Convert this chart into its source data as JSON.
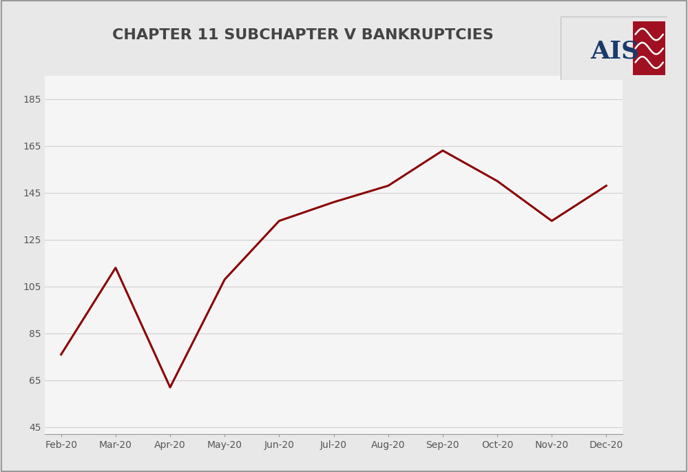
{
  "title": "CHAPTER 11 SUBCHAPTER V BANKRUPTCIES",
  "x_labels": [
    "Feb-20",
    "Mar-20",
    "Apr-20",
    "May-20",
    "Jun-20",
    "Jul-20",
    "Aug-20",
    "Sep-20",
    "Oct-20",
    "Nov-20",
    "Dec-20"
  ],
  "y_values": [
    76,
    113,
    62,
    108,
    133,
    141,
    148,
    163,
    150,
    133,
    148
  ],
  "line_color": "#8B0000",
  "background_color": "#e8e8e8",
  "plot_background_color": "#f5f5f5",
  "yticks": [
    45,
    65,
    85,
    105,
    125,
    145,
    165,
    185
  ],
  "ylim": [
    42,
    195
  ],
  "title_fontsize": 16,
  "axis_label_fontsize": 10,
  "line_width": 2.2,
  "grid_color": "#d0d0d0",
  "border_color": "#999999",
  "ais_text_color": "#1a3a6b",
  "ais_box_color": "#a01020",
  "ais_wave_color": "#ffffff"
}
